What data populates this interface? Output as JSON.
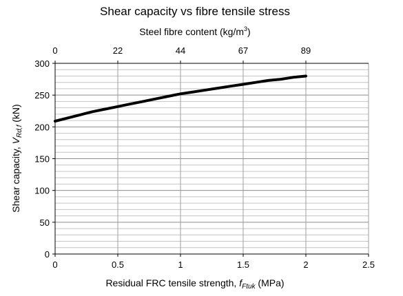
{
  "chart_data": {
    "type": "line",
    "title": "Shear capacity vs fibre tensile stress",
    "xlabel": "Residual FRC tensile strength, ",
    "xlabel_symbol": "f",
    "xlabel_subscript": "Ftuk",
    "xlabel_unit": " (MPa)",
    "ylabel": "Shear capacity, ",
    "ylabel_symbol": "V",
    "ylabel_subscript": "Rd,f",
    "ylabel_unit": " (kN)",
    "x2label": "Steel fibre content (kg/m",
    "x2label_superscript": "3",
    "x2label_close": ")",
    "xlim": [
      0,
      2.5
    ],
    "ylim": [
      0,
      300
    ],
    "xticks": [
      "0",
      "0.5",
      "1",
      "1.5",
      "2",
      "2.5"
    ],
    "yticks": [
      "0",
      "50",
      "100",
      "150",
      "200",
      "250",
      "300"
    ],
    "x2ticks": [
      {
        "x": 0,
        "label": "0"
      },
      {
        "x": 0.5,
        "label": "22"
      },
      {
        "x": 1.0,
        "label": "44"
      },
      {
        "x": 1.5,
        "label": "67"
      },
      {
        "x": 2.0,
        "label": "89"
      }
    ],
    "grid": true,
    "series": [
      {
        "color": "#000000",
        "x": [
          0,
          0.1,
          0.2,
          0.3,
          0.4,
          0.5,
          0.6,
          0.7,
          0.8,
          0.9,
          1.0,
          1.1,
          1.2,
          1.3,
          1.4,
          1.5,
          1.6,
          1.7,
          1.8,
          1.9,
          2.0
        ],
        "y": [
          209,
          214,
          219,
          224,
          228,
          232,
          236,
          240,
          244,
          248,
          252,
          255,
          258,
          261,
          264,
          267,
          270,
          273,
          275,
          278,
          280
        ]
      }
    ]
  }
}
